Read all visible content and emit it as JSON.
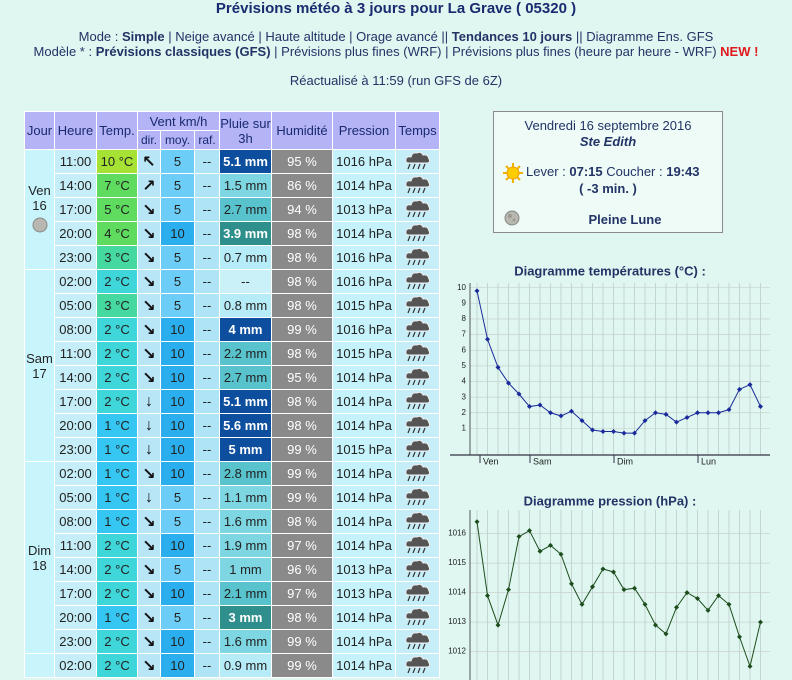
{
  "header": {
    "title": "Prévisions météo à 3 jours pour La Grave ( 05320 )",
    "mode": [
      {
        "text": "Mode : "
      },
      {
        "text": "Simple",
        "bold": true
      },
      {
        "text": " | Neige avancé | Haute altitude | Orage avancé || "
      },
      {
        "text": "Tendances 10 jours",
        "bold": true
      },
      {
        "text": " || Diagramme Ens. GFS"
      }
    ],
    "model": [
      {
        "text": "Modèle * : "
      },
      {
        "text": "Prévisions classiques (GFS)",
        "bold": true
      },
      {
        "text": " | Prévisions plus fines (WRF) | Prévisions plus fines (heure par heure - WRF) "
      },
      {
        "text": "NEW !",
        "bold": true,
        "color": "#e0191e"
      }
    ],
    "updated": "Réactualisé à 11:59 (run GFS de 6Z)"
  },
  "table": {
    "headers": {
      "jour": "Jour",
      "heure": "Heure",
      "temp": "Temp.",
      "vent": "Vent km/h",
      "dir": "dir.",
      "moy": "moy.",
      "raf": "raf.",
      "pluie": "Pluie sur 3h",
      "humidite": "Humidité",
      "pression": "Pression",
      "temps": "Temps"
    },
    "days": [
      {
        "name": "Ven",
        "date": "16",
        "rows": [
          [
            "11:00",
            "10 °C",
            "↖",
            "5",
            "--",
            "5.1 mm",
            "95 %",
            "1016 hPa"
          ],
          [
            "14:00",
            "7 °C",
            "↗",
            "5",
            "--",
            "1.5 mm",
            "86 %",
            "1014 hPa"
          ],
          [
            "17:00",
            "5 °C",
            "↘",
            "5",
            "--",
            "2.7 mm",
            "94 %",
            "1013 hPa"
          ],
          [
            "20:00",
            "4 °C",
            "↘",
            "10",
            "--",
            "3.9 mm",
            "98 %",
            "1014 hPa"
          ],
          [
            "23:00",
            "3 °C",
            "↘",
            "5",
            "--",
            "0.7 mm",
            "98 %",
            "1016 hPa"
          ]
        ]
      },
      {
        "name": "Sam",
        "date": "17",
        "rows": [
          [
            "02:00",
            "2 °C",
            "↘",
            "5",
            "--",
            "--",
            "98 %",
            "1016 hPa"
          ],
          [
            "05:00",
            "3 °C",
            "↘",
            "5",
            "--",
            "0.8 mm",
            "98 %",
            "1015 hPa"
          ],
          [
            "08:00",
            "2 °C",
            "↘",
            "10",
            "--",
            "4 mm",
            "99 %",
            "1016 hPa"
          ],
          [
            "11:00",
            "2 °C",
            "↘",
            "10",
            "--",
            "2.2 mm",
            "98 %",
            "1015 hPa"
          ],
          [
            "14:00",
            "2 °C",
            "↘",
            "10",
            "--",
            "2.7 mm",
            "95 %",
            "1014 hPa"
          ],
          [
            "17:00",
            "2 °C",
            "↓",
            "10",
            "--",
            "5.1 mm",
            "98 %",
            "1014 hPa"
          ],
          [
            "20:00",
            "1 °C",
            "↓",
            "10",
            "--",
            "5.6 mm",
            "98 %",
            "1014 hPa"
          ],
          [
            "23:00",
            "1 °C",
            "↓",
            "10",
            "--",
            "5 mm",
            "99 %",
            "1015 hPa"
          ]
        ]
      },
      {
        "name": "Dim",
        "date": "18",
        "rows": [
          [
            "02:00",
            "1 °C",
            "↘",
            "10",
            "--",
            "2.8 mm",
            "99 %",
            "1014 hPa"
          ],
          [
            "05:00",
            "1 °C",
            "↓",
            "5",
            "--",
            "1.1 mm",
            "99 %",
            "1014 hPa"
          ],
          [
            "08:00",
            "1 °C",
            "↘",
            "5",
            "--",
            "1.6 mm",
            "98 %",
            "1014 hPa"
          ],
          [
            "11:00",
            "2 °C",
            "↘",
            "10",
            "--",
            "1.9 mm",
            "97 %",
            "1014 hPa"
          ],
          [
            "14:00",
            "2 °C",
            "↘",
            "5",
            "--",
            "1 mm",
            "96 %",
            "1013 hPa"
          ],
          [
            "17:00",
            "2 °C",
            "↘",
            "10",
            "--",
            "2.1 mm",
            "97 %",
            "1013 hPa"
          ],
          [
            "20:00",
            "1 °C",
            "↘",
            "5",
            "--",
            "3 mm",
            "98 %",
            "1014 hPa"
          ],
          [
            "23:00",
            "2 °C",
            "↘",
            "10",
            "--",
            "1.6 mm",
            "99 %",
            "1014 hPa"
          ]
        ]
      },
      {
        "rows": [
          [
            "02:00",
            "2 °C",
            "↘",
            "10",
            "--",
            "0.9 mm",
            "99 %",
            "1014 hPa"
          ]
        ]
      }
    ]
  },
  "info": {
    "date": "Vendredi 16 septembre 2016",
    "saint": "Ste Edith",
    "lever_label": "Lever : ",
    "lever": "07:15",
    "coucher_label": "Coucher : ",
    "coucher": "19:43",
    "duration": "( -3 min. )",
    "moon": "Pleine Lune"
  },
  "charts": [
    {
      "type": "line",
      "title": "Diagramme températures (°C) :",
      "xlabels": [
        "Ven",
        "Sam",
        "Dim",
        "Lun"
      ],
      "values": [
        9.8,
        6.7,
        4.9,
        3.9,
        3.2,
        2.4,
        2.5,
        2.0,
        1.8,
        2.1,
        1.5,
        0.9,
        0.8,
        0.8,
        0.7,
        0.7,
        1.5,
        2.0,
        1.9,
        1.4,
        1.7,
        2.0,
        2.0,
        2.0,
        2.2,
        3.5,
        3.8,
        2.4
      ],
      "color": "#1a2a9a",
      "ylim": [
        -0.7,
        10.3
      ],
      "yticks": [
        1,
        2,
        3,
        4,
        5,
        6,
        7,
        8,
        9,
        10
      ],
      "grid": true
    },
    {
      "type": "line",
      "title": "Diagramme pression (hPa) :",
      "values": [
        1016.4,
        1013.9,
        1012.9,
        1014.1,
        1015.9,
        1016.1,
        1015.4,
        1015.6,
        1015.3,
        1014.3,
        1013.6,
        1014.2,
        1014.8,
        1014.7,
        1014.1,
        1014.15,
        1013.6,
        1012.9,
        1012.6,
        1013.5,
        1014.0,
        1013.8,
        1013.4,
        1013.9,
        1013.6,
        1012.5,
        1011.5,
        1013.0
      ],
      "color": "#1d4d1d",
      "ylim": [
        1010.7,
        1016.8
      ],
      "yticks": [
        1012,
        1013,
        1014,
        1015,
        1016
      ],
      "grid": true
    }
  ]
}
